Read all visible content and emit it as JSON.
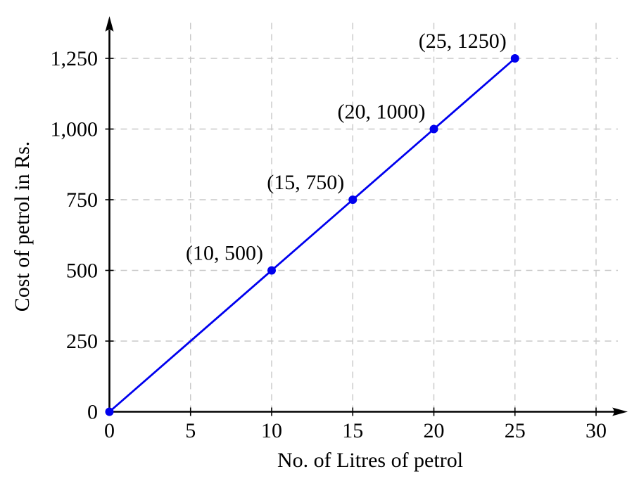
{
  "chart_data": {
    "type": "line",
    "title": "",
    "xlabel": "No. of Litres of petrol",
    "ylabel": "Cost of petrol in Rs.",
    "xlim": [
      0,
      30
    ],
    "ylim": [
      0,
      1250
    ],
    "grid": "dashed",
    "legend": "none",
    "x_ticks": {
      "values": [
        0,
        5,
        10,
        15,
        20,
        25,
        30
      ],
      "labels": [
        "0",
        "5",
        "10",
        "15",
        "20",
        "25",
        "30"
      ]
    },
    "y_ticks": {
      "values": [
        0,
        250,
        500,
        750,
        1000,
        1250
      ],
      "labels": [
        "0",
        "250",
        "500",
        "750",
        "1,000",
        "1,250"
      ]
    },
    "series": [
      {
        "name": "cost-of-petrol-vs-litres",
        "color": "#0000ee",
        "marker": "filled-circle",
        "points": [
          {
            "x": 0,
            "y": 0,
            "label": ""
          },
          {
            "x": 10,
            "y": 500,
            "label": "(10, 500)"
          },
          {
            "x": 15,
            "y": 750,
            "label": "(15, 750)"
          },
          {
            "x": 20,
            "y": 1000,
            "label": "(20, 1000)"
          },
          {
            "x": 25,
            "y": 1250,
            "label": "(25, 1250)"
          }
        ]
      }
    ],
    "colors": {
      "axis": "#000000",
      "grid": "#c8c8c8",
      "text": "#000000",
      "background": "#ffffff"
    }
  }
}
